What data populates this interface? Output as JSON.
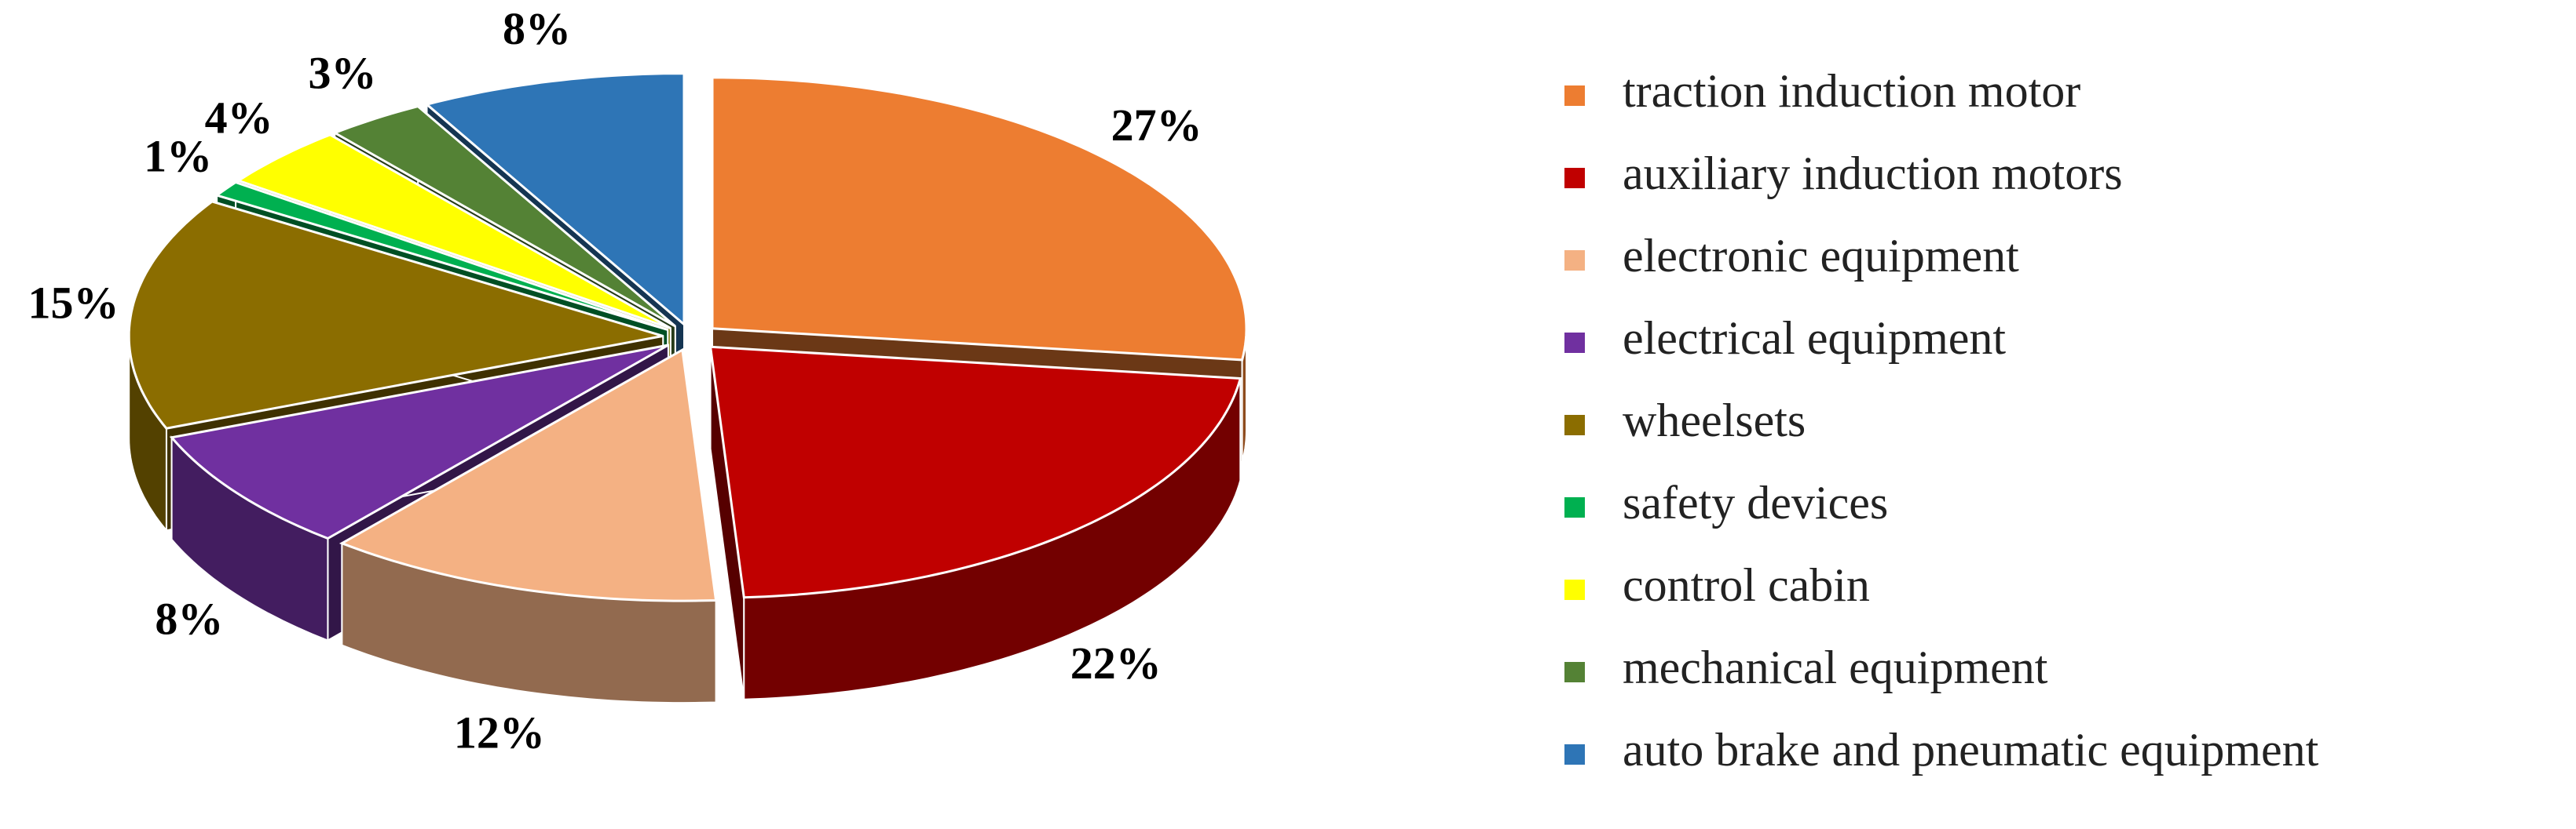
{
  "chart_data": {
    "type": "pie",
    "categories": [
      "traction  induction motor",
      "auxiliary induction motors",
      "electronic equipment",
      "electrical equipment",
      "wheelsets",
      "safety devices",
      "control cabin",
      "mechanical equipment",
      "auto brake and pneumatic equipment"
    ],
    "values": [
      27,
      22,
      12,
      8,
      15,
      1,
      4,
      3,
      8
    ],
    "value_labels": [
      "27%",
      "22%",
      "12%",
      "8%",
      "15%",
      "1%",
      "4%",
      "3%",
      "8%"
    ],
    "colors": [
      "#ED7D31",
      "#C00000",
      "#F4B183",
      "#7030A0",
      "#8B6D00",
      "#00B050",
      "#FFFF00",
      "#548235",
      "#2E75B6"
    ],
    "legend": "right"
  }
}
